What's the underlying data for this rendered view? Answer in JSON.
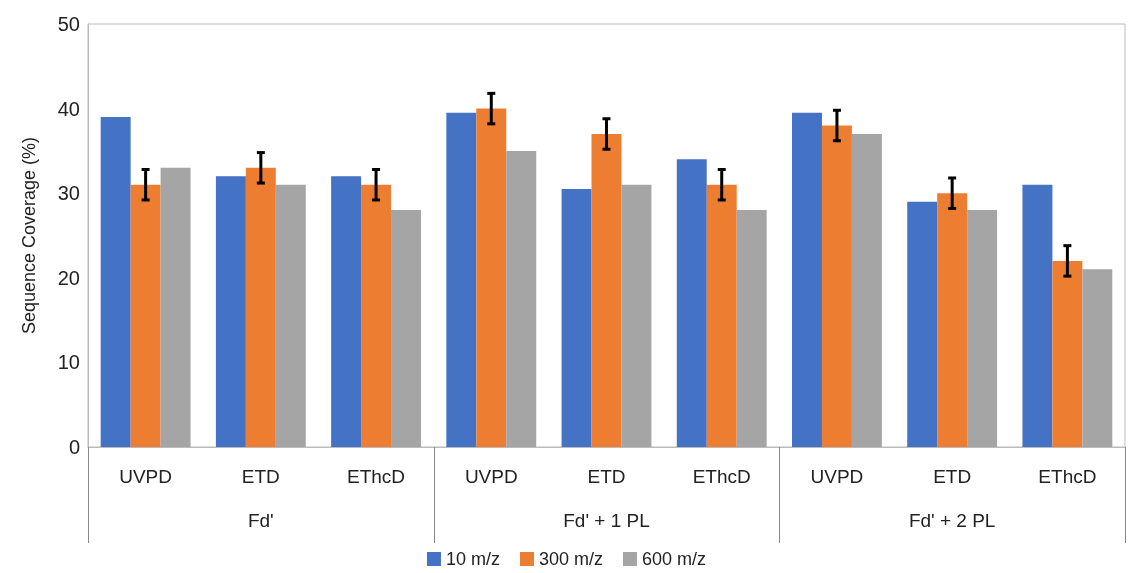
{
  "chart_data": {
    "type": "bar",
    "ylabel": "Sequence Coverage (%)",
    "categories": [
      "UVPD",
      "ETD",
      "EThcD",
      "UVPD",
      "ETD",
      "EThcD",
      "UVPD",
      "ETD",
      "EThcD"
    ],
    "annotations": [
      "Fd'",
      "Fd' + 1 PL",
      "Fd' + 2 PL"
    ],
    "series": [
      {
        "name": "10 m/z",
        "color": "#4472c4",
        "values": [
          39,
          32,
          32,
          39.5,
          30.5,
          34,
          39.5,
          29,
          31
        ]
      },
      {
        "name": "300 m/z",
        "color": "#ed7d31",
        "values": [
          31,
          33,
          31,
          40,
          37,
          31,
          38,
          30,
          22
        ],
        "errors": [
          1.8,
          1.8,
          1.8,
          1.8,
          1.8,
          1.8,
          1.8,
          1.8,
          1.8
        ]
      },
      {
        "name": "600 m/z",
        "color": "#a5a5a5",
        "values": [
          33,
          31,
          28,
          35,
          31,
          28,
          37,
          28,
          21
        ]
      }
    ],
    "ylim": [
      0,
      50
    ],
    "yticks": [
      0,
      10,
      20,
      30,
      40,
      50
    ],
    "grid": false,
    "legend": "bottom"
  }
}
